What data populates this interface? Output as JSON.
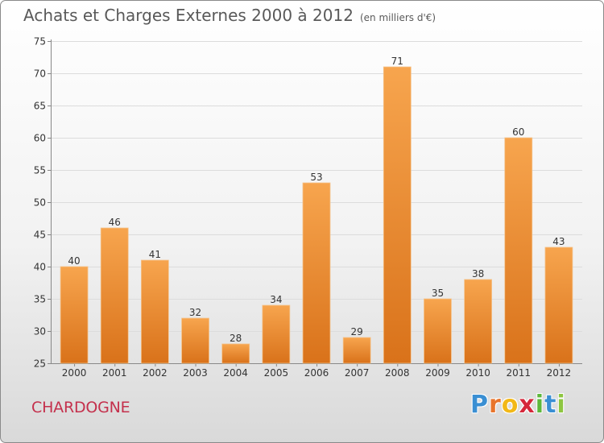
{
  "header": {
    "title": "Achats et Charges Externes 2000 à 2012",
    "unit": "(en milliers d'€)"
  },
  "footer": {
    "commune": "CHARDOGNE",
    "brand_letters": [
      "P",
      "r",
      "o",
      "x",
      "i",
      "t",
      "i"
    ],
    "brand_colors": [
      "#3a8fd3",
      "#e8742b",
      "#f2b817",
      "#d5283b",
      "#5db83b",
      "#3a8fd3",
      "#8ec641"
    ]
  },
  "colors": {
    "bar_light": "#f7a54e",
    "bar_dark": "#d9721a",
    "title": "#595959",
    "commune": "#c4304c"
  },
  "chart_data": {
    "type": "bar",
    "categories": [
      "2000",
      "2001",
      "2002",
      "2003",
      "2004",
      "2005",
      "2006",
      "2007",
      "2008",
      "2009",
      "2010",
      "2011",
      "2012"
    ],
    "values": [
      40,
      46,
      41,
      32,
      28,
      34,
      53,
      29,
      71,
      35,
      38,
      60,
      43
    ],
    "ylim": [
      25,
      75
    ],
    "yticks": [
      25,
      30,
      35,
      40,
      45,
      50,
      55,
      60,
      65,
      70,
      75
    ],
    "grid": true
  }
}
